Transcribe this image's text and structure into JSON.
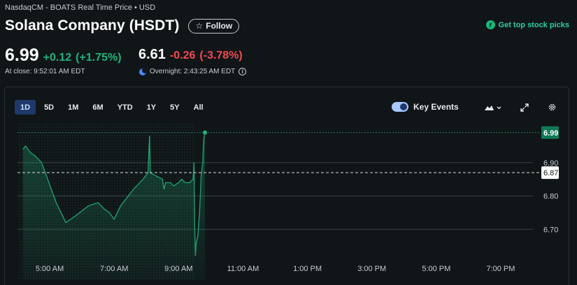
{
  "header": {
    "exchange_line": "NasdaqCM - BOATS Real Time Price • USD",
    "title": "Solana Company (HSDT)",
    "follow_label": "Follow",
    "promo_label": "Get top stock picks"
  },
  "quote": {
    "price": "6.99",
    "change": "+0.12",
    "change_pct": "(+1.75%)",
    "close_label": "At close: 9:52:01 AM EDT",
    "overnight_price": "6.61",
    "overnight_change": "-0.26",
    "overnight_change_pct": "(-3.78%)",
    "overnight_label": "Overnight: 2:43:25 AM EDT"
  },
  "toolbar": {
    "ranges": [
      "1D",
      "5D",
      "1M",
      "6M",
      "YTD",
      "1Y",
      "5Y",
      "All"
    ],
    "active_range": "1D",
    "key_events_label": "Key Events",
    "key_events_on": true
  },
  "colors": {
    "up": "#22b37a",
    "down": "#ef4b51",
    "accent": "#2ecf9d",
    "line": "#1f9c6c"
  },
  "chart_data": {
    "type": "line",
    "x_tick_labels": [
      "5:00 AM",
      "7:00 AM",
      "9:00 AM",
      "11:00 AM",
      "1:00 PM",
      "3:00 PM",
      "5:00 PM",
      "7:00 PM"
    ],
    "x_tick_hours": [
      5,
      7,
      9,
      11,
      13,
      15,
      17,
      19
    ],
    "xlim_hours": [
      4,
      20
    ],
    "y_tick_labels": [
      "6.70",
      "6.80",
      "6.90"
    ],
    "y_ticks": [
      6.7,
      6.8,
      6.9
    ],
    "ylim": [
      6.6,
      7.0
    ],
    "last_price": 6.99,
    "last_price_label": "6.99",
    "previous_close": 6.87,
    "previous_close_label": "6.87",
    "series": [
      {
        "points": [
          [
            4.17,
            6.94
          ],
          [
            4.25,
            6.95
          ],
          [
            4.4,
            6.93
          ],
          [
            4.55,
            6.92
          ],
          [
            4.75,
            6.9
          ],
          [
            5.2,
            6.78
          ],
          [
            5.5,
            6.72
          ],
          [
            5.8,
            6.74
          ],
          [
            6.2,
            6.77
          ],
          [
            6.5,
            6.78
          ],
          [
            6.7,
            6.76
          ],
          [
            6.85,
            6.75
          ],
          [
            7.0,
            6.73
          ],
          [
            7.2,
            6.77
          ],
          [
            7.6,
            6.82
          ],
          [
            7.9,
            6.85
          ],
          [
            8.05,
            6.87
          ],
          [
            8.1,
            6.98
          ],
          [
            8.12,
            6.87
          ],
          [
            8.3,
            6.86
          ],
          [
            8.5,
            6.85
          ],
          [
            8.55,
            6.82
          ],
          [
            8.6,
            6.84
          ],
          [
            8.75,
            6.84
          ],
          [
            8.85,
            6.83
          ],
          [
            9.0,
            6.84
          ],
          [
            9.1,
            6.85
          ],
          [
            9.2,
            6.84
          ],
          [
            9.35,
            6.84
          ],
          [
            9.45,
            6.85
          ],
          [
            9.48,
            6.9
          ],
          [
            9.5,
            6.72
          ],
          [
            9.52,
            6.62
          ],
          [
            9.55,
            6.66
          ],
          [
            9.6,
            6.68
          ],
          [
            9.65,
            6.75
          ],
          [
            9.7,
            6.86
          ],
          [
            9.75,
            6.9
          ],
          [
            9.78,
            6.97
          ],
          [
            9.82,
            6.99
          ]
        ]
      }
    ],
    "premarket_shaded_until_hours": 9.5
  }
}
